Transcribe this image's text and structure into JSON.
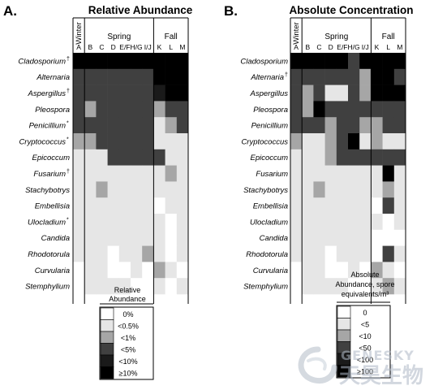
{
  "chart_data": [
    {
      "type": "heatmap",
      "panel_label": "A.",
      "title": "Relative Abundance",
      "season_labels": [
        "Winter",
        "Spring",
        "Fall"
      ],
      "columns": [
        "A",
        "B",
        "C",
        "D",
        "E/F",
        "H/G",
        "I/J",
        "K",
        "L",
        "M"
      ],
      "rows": [
        "Cladosporium",
        "Alternaria",
        "Aspergillus",
        "Pleospora",
        "Penicillium",
        "Cryptococcus",
        "Epicoccum",
        "Fusarium",
        "Stachybotrys",
        "Embellisia",
        "Ulocladium",
        "Candida",
        "Rhodotorula",
        "Curvularia",
        "Stemphylium"
      ],
      "row_marks": [
        "†",
        "",
        "†",
        "",
        "*",
        "*",
        "",
        "†",
        "",
        "",
        "*",
        "",
        "",
        "",
        ""
      ],
      "legend_title": "Relative Abundance",
      "legend_levels": [
        "0%",
        "<0.5%",
        "<1%",
        "<5%",
        "<10%",
        "≥10%"
      ],
      "level_colors": [
        "#ffffff",
        "#e6e6e6",
        "#a6a6a6",
        "#404040",
        "#1a1a1a",
        "#000000"
      ],
      "levels": [
        [
          5,
          5,
          5,
          5,
          5,
          5,
          5,
          5,
          5,
          5
        ],
        [
          3,
          3,
          3,
          3,
          3,
          3,
          3,
          5,
          5,
          5
        ],
        [
          3,
          3,
          3,
          3,
          3,
          3,
          3,
          4,
          5,
          5
        ],
        [
          3,
          2,
          3,
          3,
          3,
          3,
          3,
          2,
          3,
          3
        ],
        [
          3,
          3,
          3,
          3,
          3,
          3,
          3,
          1,
          2,
          3
        ],
        [
          2,
          2,
          3,
          3,
          3,
          3,
          3,
          1,
          1,
          1
        ],
        [
          1,
          1,
          1,
          3,
          3,
          3,
          3,
          3,
          1,
          1
        ],
        [
          1,
          1,
          1,
          1,
          1,
          1,
          1,
          1,
          2,
          1
        ],
        [
          1,
          1,
          2,
          1,
          1,
          1,
          1,
          1,
          1,
          1
        ],
        [
          1,
          1,
          1,
          1,
          1,
          1,
          1,
          0,
          1,
          1
        ],
        [
          1,
          1,
          1,
          1,
          1,
          1,
          1,
          1,
          0,
          1
        ],
        [
          1,
          1,
          1,
          1,
          1,
          1,
          1,
          1,
          0,
          1
        ],
        [
          1,
          1,
          1,
          0,
          1,
          1,
          2,
          1,
          0,
          1
        ],
        [
          0,
          1,
          1,
          0,
          0,
          1,
          0,
          2,
          1,
          0
        ],
        [
          0,
          1,
          1,
          1,
          1,
          0,
          0,
          1,
          0,
          1
        ]
      ]
    },
    {
      "type": "heatmap",
      "panel_label": "B.",
      "title": "Absolute Concentration",
      "season_labels": [
        "Winter",
        "Spring",
        "Fall"
      ],
      "columns": [
        "A",
        "B",
        "C",
        "D",
        "E/F",
        "H/G",
        "I/J",
        "K",
        "L",
        "M"
      ],
      "rows": [
        "Cladosporium",
        "Alternaria",
        "Aspergillus",
        "Pleospora",
        "Penicillium",
        "Cryptococcus",
        "Epicoccum",
        "Fusarium",
        "Stachybotrys",
        "Embellisia",
        "Ulocladium",
        "Candida",
        "Rhodotorula",
        "Curvularia",
        "Stemphylium"
      ],
      "row_marks": [
        "",
        "†",
        "",
        "",
        "",
        "",
        "",
        "",
        "",
        "",
        "",
        "",
        "",
        "",
        ""
      ],
      "legend_title_lines": [
        "Absolute",
        "Abundance, spore",
        "equivalents/m³"
      ],
      "legend_levels": [
        "0",
        "<5",
        "<10",
        "<50",
        "<100",
        "≥100"
      ],
      "level_colors": [
        "#ffffff",
        "#e6e6e6",
        "#a6a6a6",
        "#404040",
        "#1a1a1a",
        "#000000"
      ],
      "levels": [
        [
          5,
          5,
          5,
          5,
          5,
          3,
          5,
          5,
          5,
          5
        ],
        [
          3,
          3,
          3,
          3,
          3,
          3,
          2,
          5,
          5,
          3
        ],
        [
          3,
          2,
          3,
          1,
          1,
          3,
          2,
          5,
          5,
          5
        ],
        [
          3,
          2,
          5,
          3,
          3,
          3,
          3,
          3,
          3,
          3
        ],
        [
          3,
          3,
          3,
          2,
          3,
          3,
          2,
          2,
          3,
          3
        ],
        [
          2,
          1,
          1,
          2,
          3,
          5,
          1,
          2,
          1,
          1
        ],
        [
          1,
          1,
          1,
          2,
          3,
          3,
          3,
          3,
          3,
          3
        ],
        [
          1,
          1,
          1,
          1,
          1,
          1,
          1,
          1,
          5,
          1
        ],
        [
          1,
          1,
          2,
          1,
          1,
          1,
          1,
          1,
          2,
          1
        ],
        [
          1,
          1,
          1,
          1,
          1,
          1,
          1,
          0,
          3,
          1
        ],
        [
          1,
          1,
          1,
          1,
          1,
          1,
          1,
          1,
          0,
          1
        ],
        [
          1,
          1,
          1,
          1,
          1,
          1,
          1,
          0,
          0,
          0
        ],
        [
          1,
          1,
          1,
          0,
          1,
          1,
          1,
          0,
          3,
          1
        ],
        [
          0,
          1,
          1,
          0,
          0,
          1,
          0,
          2,
          1,
          0
        ],
        [
          0,
          1,
          1,
          1,
          1,
          0,
          0,
          1,
          2,
          1
        ]
      ]
    }
  ],
  "watermark": {
    "latin": "GENESKY",
    "chinese": "天昊生物"
  }
}
